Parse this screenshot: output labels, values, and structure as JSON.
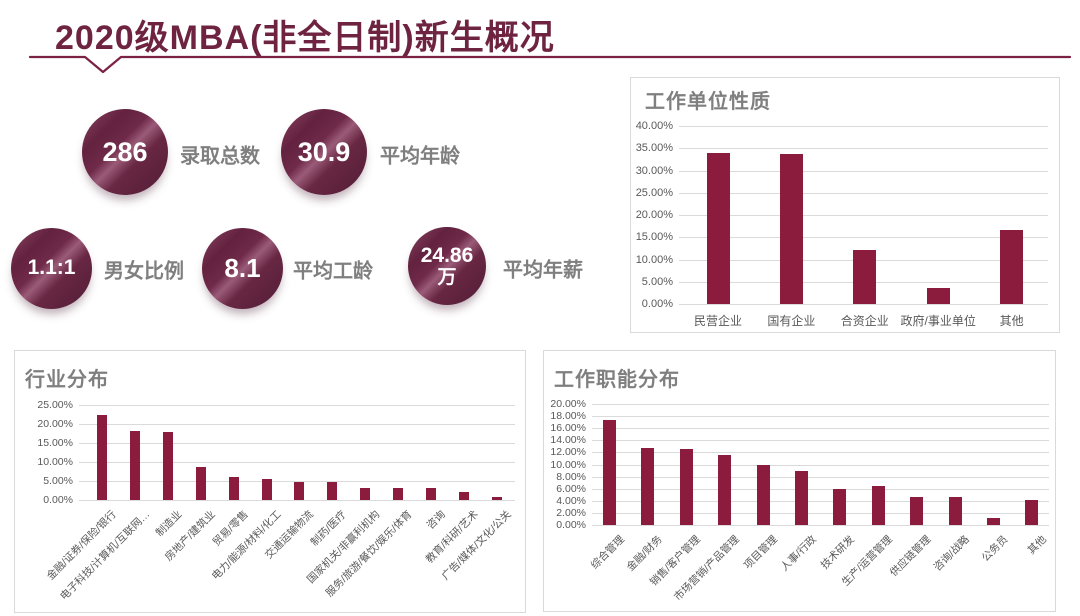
{
  "page_title": "2020级MBA(非全日制)新生概况",
  "colors": {
    "accent_maroon": "#6e2340",
    "underline": "#7a2144",
    "bar": "#8b1c3e",
    "chart_title_gray": "#7f7f7f",
    "axis_gray": "#595959",
    "grid_gray": "#dadada",
    "stat_label_gray": "#7f7f7f"
  },
  "stats": [
    {
      "value": "286",
      "unit": "",
      "label": "录取总数"
    },
    {
      "value": "30.9",
      "unit": "",
      "label": "平均年龄"
    },
    {
      "value": "1.1:1",
      "unit": "",
      "label": "男女比例"
    },
    {
      "value": "8.1",
      "unit": "",
      "label": "平均工龄"
    },
    {
      "value": "24.86",
      "unit": "万",
      "label": "平均年薪"
    }
  ],
  "chart_data": [
    {
      "type": "bar",
      "title": "工作单位性质",
      "categories": [
        "民营企业",
        "国有企业",
        "合资企业",
        "政府/事业单位",
        "其他"
      ],
      "values": [
        33.9,
        33.6,
        12.1,
        3.5,
        16.6
      ],
      "xlabel": "",
      "ylabel": "",
      "ylim": [
        0,
        40
      ],
      "ytick_step": 5,
      "ytick_suffix": "%",
      "grid": true,
      "legend": "none"
    },
    {
      "type": "bar",
      "title": "行业分布",
      "categories": [
        "金融/证券/保险/银行",
        "电子科技/计算机/互联网…",
        "制造业",
        "房地产/建筑业",
        "贸易/零售",
        "电力/能源/材料/化工",
        "交通运输物流",
        "制药/医疗",
        "国家机关/非赢利机构",
        "服务/旅游/餐饮/娱乐/体育",
        "咨询",
        "教育/科研/艺术",
        "广告/媒体/文化/公关"
      ],
      "values": [
        22.5,
        18.1,
        17.8,
        8.6,
        6.0,
        5.6,
        4.8,
        4.8,
        3.1,
        3.1,
        3.1,
        2.1,
        0.7
      ],
      "xlabel": "",
      "ylabel": "",
      "ylim": [
        0,
        25
      ],
      "ytick_step": 5,
      "ytick_suffix": "%",
      "grid": true,
      "legend": "none"
    },
    {
      "type": "bar",
      "title": "工作职能分布",
      "categories": [
        "综合管理",
        "金融/财务",
        "销售/客户管理",
        "市场营销/产品管理",
        "项目管理",
        "人事/行政",
        "技术研发",
        "生产/运营管理",
        "供应链管理",
        "咨询/战略",
        "公务员",
        "其他"
      ],
      "values": [
        17.4,
        12.8,
        12.5,
        11.6,
        10.0,
        8.9,
        6.0,
        6.4,
        4.6,
        4.6,
        1.1,
        4.2
      ],
      "xlabel": "",
      "ylabel": "",
      "ylim": [
        0,
        20
      ],
      "ytick_step": 2,
      "ytick_suffix": "%",
      "grid": true,
      "legend": "none"
    }
  ]
}
